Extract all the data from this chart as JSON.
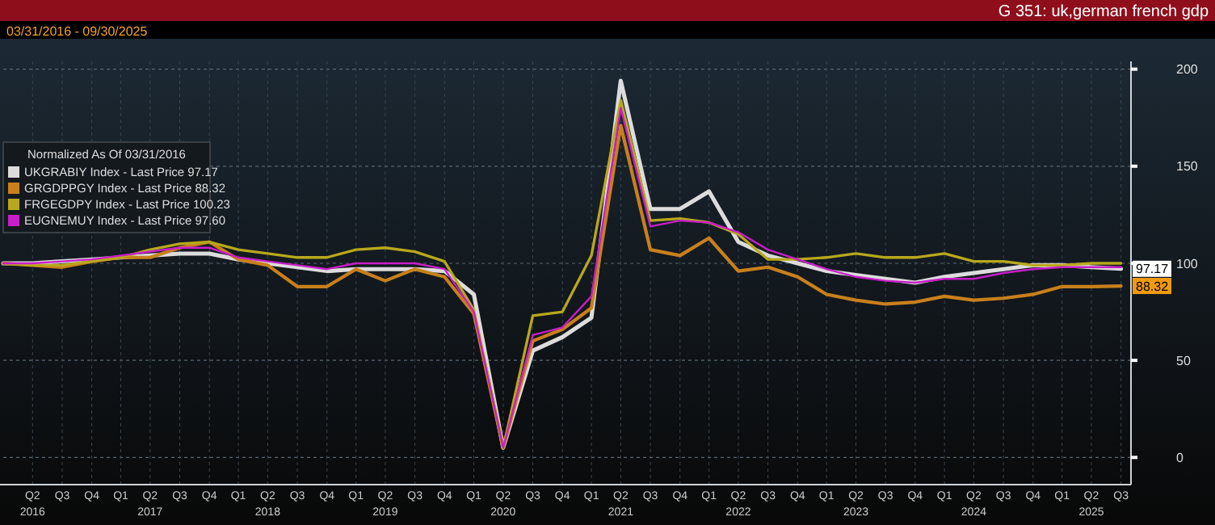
{
  "chart_data": {
    "type": "line",
    "title": "G 351: uk,german french gdp",
    "subtitle": "03/31/2016 - 09/30/2025",
    "legend_title": "Normalized As Of 03/31/2016",
    "legend": "top left",
    "grid": true,
    "marker": "none",
    "line_style": "solid",
    "x": [
      "2016-03-31",
      "2016-06-30",
      "2016-09-30",
      "2016-12-31",
      "2017-03-31",
      "2017-06-30",
      "2017-09-30",
      "2017-12-31",
      "2018-03-31",
      "2018-06-30",
      "2018-09-30",
      "2018-12-31",
      "2019-03-31",
      "2019-06-30",
      "2019-09-30",
      "2019-12-31",
      "2020-03-31",
      "2020-06-30",
      "2020-09-30",
      "2020-12-31",
      "2021-03-31",
      "2021-06-30",
      "2021-09-30",
      "2021-12-31",
      "2022-03-31",
      "2022-06-30",
      "2022-09-30",
      "2022-12-31",
      "2023-03-31",
      "2023-06-30",
      "2023-09-30",
      "2023-12-31",
      "2024-03-31",
      "2024-06-30",
      "2024-09-30",
      "2024-12-31",
      "2025-03-31",
      "2025-06-30",
      "2025-09-30"
    ],
    "xlim": [
      "2016-03-31",
      "2025-10-31"
    ],
    "xticks": [
      {
        "value": "2016-06-30",
        "label": "Q2\n2016"
      },
      {
        "value": "2016-09-30",
        "label": "Q3"
      },
      {
        "value": "2016-12-31",
        "label": "Q4"
      },
      {
        "value": "2017-03-31",
        "label": "Q1"
      },
      {
        "value": "2017-06-30",
        "label": "Q2\n2017"
      },
      {
        "value": "2017-09-30",
        "label": "Q3"
      },
      {
        "value": "2017-12-31",
        "label": "Q4"
      },
      {
        "value": "2018-03-31",
        "label": "Q1"
      },
      {
        "value": "2018-06-30",
        "label": "Q2\n2018"
      },
      {
        "value": "2018-09-30",
        "label": "Q3"
      },
      {
        "value": "2018-12-31",
        "label": "Q4"
      },
      {
        "value": "2019-03-31",
        "label": "Q1"
      },
      {
        "value": "2019-06-30",
        "label": "Q2\n2019"
      },
      {
        "value": "2019-09-30",
        "label": "Q3"
      },
      {
        "value": "2019-12-31",
        "label": "Q4"
      },
      {
        "value": "2020-03-31",
        "label": "Q1"
      },
      {
        "value": "2020-06-30",
        "label": "Q2\n2020"
      },
      {
        "value": "2020-09-30",
        "label": "Q3"
      },
      {
        "value": "2020-12-31",
        "label": "Q4"
      },
      {
        "value": "2021-03-31",
        "label": "Q1"
      },
      {
        "value": "2021-06-30",
        "label": "Q2\n2021"
      },
      {
        "value": "2021-09-30",
        "label": "Q3"
      },
      {
        "value": "2021-12-31",
        "label": "Q4"
      },
      {
        "value": "2022-03-31",
        "label": "Q1"
      },
      {
        "value": "2022-06-30",
        "label": "Q2\n2022"
      },
      {
        "value": "2022-09-30",
        "label": "Q3"
      },
      {
        "value": "2022-12-31",
        "label": "Q4"
      },
      {
        "value": "2023-03-31",
        "label": "Q1"
      },
      {
        "value": "2023-06-30",
        "label": "Q2\n2023"
      },
      {
        "value": "2023-09-30",
        "label": "Q3"
      },
      {
        "value": "2023-12-31",
        "label": "Q4"
      },
      {
        "value": "2024-03-31",
        "label": "Q1"
      },
      {
        "value": "2024-06-30",
        "label": "Q2\n2024"
      },
      {
        "value": "2024-09-30",
        "label": "Q3"
      },
      {
        "value": "2024-12-31",
        "label": "Q4"
      },
      {
        "value": "2025-03-31",
        "label": "Q1"
      },
      {
        "value": "2025-06-30",
        "label": "Q2\n2025"
      },
      {
        "value": "2025-09-30",
        "label": "Q3"
      }
    ],
    "ylim": [
      -14,
      204
    ],
    "yticks": [
      0,
      50,
      100,
      150,
      200
    ],
    "series": [
      {
        "name": "UKGRABIY Index - Last Price 97.17",
        "color": "#dcdcdc",
        "values": [
          100,
          100,
          101,
          102,
          103,
          104,
          105,
          105,
          102,
          100,
          98,
          96,
          97,
          97,
          97,
          96,
          84,
          5,
          55,
          62,
          72,
          194,
          128,
          128,
          137,
          111,
          104,
          100,
          96,
          94,
          92,
          90,
          93,
          95,
          97,
          99,
          99,
          98,
          97.17
        ],
        "value_labels": [
          null,
          null,
          null,
          null,
          null,
          null,
          null,
          null,
          null,
          null,
          null,
          null,
          null,
          null,
          null,
          null,
          null,
          null,
          null,
          null,
          null,
          null,
          null,
          null,
          null,
          null,
          null,
          null,
          null,
          null,
          null,
          null,
          null,
          null,
          null,
          null,
          null,
          null,
          "97.17"
        ]
      },
      {
        "name": "GRGDPPGY Index - Last Price 88.32",
        "color": "#c8801c",
        "values": [
          100,
          99,
          98,
          101,
          103,
          103,
          108,
          111,
          102,
          99,
          88,
          88,
          97,
          91,
          97,
          93,
          74,
          5,
          60,
          66,
          77,
          171,
          107,
          104,
          113,
          96,
          98,
          93,
          84,
          81,
          79,
          80,
          83,
          81,
          82,
          84,
          88,
          88,
          88.32
        ],
        "value_labels": [
          null,
          null,
          null,
          null,
          null,
          null,
          null,
          null,
          null,
          null,
          null,
          null,
          null,
          null,
          null,
          null,
          null,
          null,
          null,
          null,
          null,
          null,
          null,
          null,
          null,
          null,
          null,
          null,
          null,
          null,
          null,
          null,
          null,
          null,
          null,
          null,
          null,
          null,
          "88.32"
        ]
      },
      {
        "name": "FRGEGDPY Index - Last Price 100.23",
        "color": "#b8a81c",
        "values": [
          100,
          99,
          99,
          101,
          103,
          107,
          110,
          111,
          107,
          105,
          103,
          103,
          107,
          108,
          106,
          101,
          76,
          5,
          73,
          75,
          104,
          184,
          122,
          123,
          121,
          115,
          102,
          102,
          103,
          105,
          103,
          103,
          105,
          101,
          101,
          99,
          99,
          100,
          100
        ]
      },
      {
        "name": "EUGNEMUY Index - Last Price 97.60",
        "color": "#c81ec8",
        "values": [
          100,
          100,
          101,
          102,
          104,
          106,
          108,
          108,
          103,
          101,
          99,
          97,
          100,
          100,
          100,
          97,
          75,
          5,
          63,
          67,
          83,
          180,
          119,
          122,
          121,
          116,
          107,
          102,
          97,
          93,
          91,
          90,
          92,
          92,
          95,
          97,
          98,
          98,
          98
        ]
      }
    ]
  }
}
